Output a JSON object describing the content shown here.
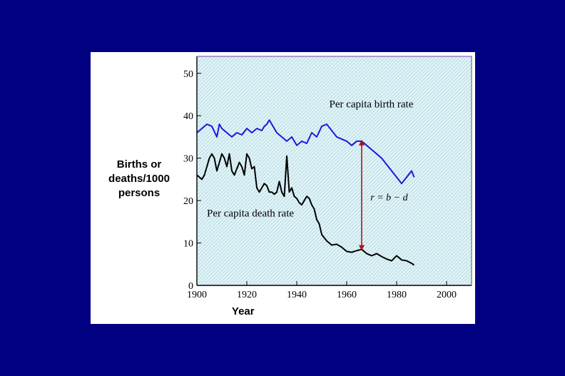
{
  "chart_data": {
    "type": "line",
    "xlabel": "Year",
    "ylabel_lines": [
      "Births or",
      "deaths/1000",
      "persons"
    ],
    "xlim": [
      1900,
      2010
    ],
    "ylim": [
      0,
      54
    ],
    "xticks": [
      1900,
      1920,
      1940,
      1960,
      1980,
      2000
    ],
    "yticks": [
      0,
      10,
      20,
      30,
      40,
      50
    ],
    "series": [
      {
        "name": "Per capita birth rate",
        "color": "#1a1adc",
        "x": [
          1900,
          1902,
          1904,
          1906,
          1908,
          1909,
          1910,
          1912,
          1914,
          1916,
          1918,
          1920,
          1922,
          1924,
          1926,
          1927,
          1928,
          1929,
          1930,
          1932,
          1934,
          1936,
          1938,
          1940,
          1942,
          1944,
          1946,
          1948,
          1950,
          1952,
          1954,
          1956,
          1958,
          1960,
          1962,
          1964,
          1966,
          1968,
          1970,
          1972,
          1974,
          1976,
          1978,
          1980,
          1982,
          1984,
          1986,
          1987
        ],
        "y": [
          36,
          37,
          38,
          37.5,
          35,
          38,
          37,
          36,
          35,
          36,
          35.5,
          37,
          36,
          37,
          36.5,
          37.5,
          38,
          39,
          38,
          36,
          35,
          34,
          35,
          33,
          34,
          33.5,
          36,
          35,
          37.5,
          38,
          36.5,
          35,
          34.5,
          34,
          33,
          34,
          34,
          33,
          32,
          31,
          30,
          28.5,
          27,
          25.5,
          24,
          25.5,
          27,
          25.5
        ]
      },
      {
        "name": "Per capita death rate",
        "color": "#000000",
        "x": [
          1900,
          1901,
          1902,
          1903,
          1904,
          1905,
          1906,
          1907,
          1908,
          1909,
          1910,
          1911,
          1912,
          1913,
          1914,
          1915,
          1916,
          1917,
          1918,
          1919,
          1920,
          1921,
          1922,
          1923,
          1924,
          1925,
          1926,
          1927,
          1928,
          1929,
          1930,
          1931,
          1932,
          1933,
          1934,
          1935,
          1936,
          1937,
          1938,
          1939,
          1940,
          1941,
          1942,
          1943,
          1944,
          1945,
          1946,
          1947,
          1948,
          1949,
          1950,
          1952,
          1954,
          1956,
          1958,
          1960,
          1962,
          1964,
          1966,
          1968,
          1970,
          1972,
          1974,
          1976,
          1978,
          1980,
          1982,
          1984,
          1986,
          1987
        ],
        "y": [
          26,
          25.5,
          25,
          26,
          28,
          30,
          31,
          30,
          27,
          29,
          31,
          30,
          28,
          31,
          27,
          26,
          27.5,
          29,
          28,
          26,
          31,
          30,
          27.5,
          28,
          23,
          22,
          23,
          24,
          23.5,
          22,
          22,
          21.5,
          22,
          24.5,
          22,
          21,
          30.5,
          22,
          23,
          21,
          20.5,
          19.5,
          19,
          20,
          21,
          20.5,
          19,
          18,
          15.5,
          14.5,
          12,
          10.5,
          9.5,
          9.7,
          9,
          8,
          7.8,
          8.2,
          8.5,
          7.5,
          7,
          7.5,
          6.8,
          6.2,
          5.8,
          7,
          6,
          5.8,
          5.2,
          4.8
        ]
      }
    ],
    "annotations": {
      "birth_label": "Per capita birth rate",
      "death_label": "Per capita death rate",
      "arrow_text": "r = b − d",
      "arrow_year": 1966,
      "arrow_top": 34,
      "arrow_bottom": 8.5,
      "arrow_color": "#b3121a"
    },
    "grid": false,
    "legend": "none"
  }
}
